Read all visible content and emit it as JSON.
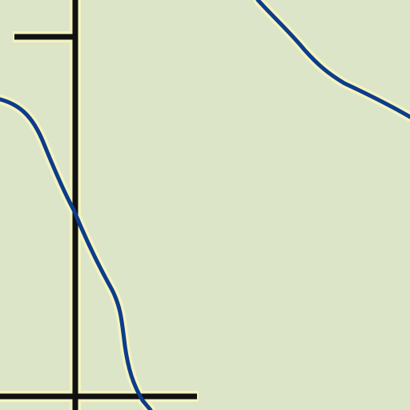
{
  "map": {
    "background_color": "#dce5c8",
    "halo_color": "#f4f3bf",
    "road_color": "#111111",
    "river_color": "#0d3c8c",
    "features": [
      {
        "id": "river-a",
        "kind": "river"
      },
      {
        "id": "river-b",
        "kind": "river"
      },
      {
        "id": "road-vertical",
        "kind": "road"
      },
      {
        "id": "road-horizontal-top",
        "kind": "road"
      },
      {
        "id": "road-horizontal-bottom",
        "kind": "road"
      }
    ]
  }
}
